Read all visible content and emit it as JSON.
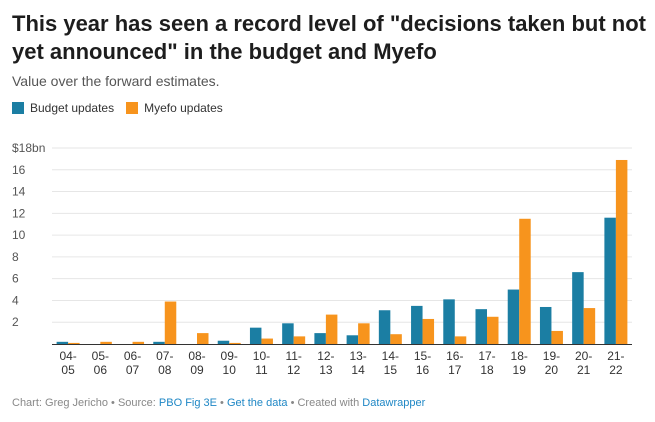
{
  "title": "This year has seen a record level of \"decisions taken but not yet announced\" in the budget and Myefo",
  "subtitle": "Value over the forward estimates.",
  "colors": {
    "budget": "#1b7ea3",
    "myefo": "#f7941d",
    "grid": "#e6e6e6",
    "axis": "#333333"
  },
  "footer": {
    "prefix": "Chart: Greg Jericho • Source: ",
    "source": "PBO Fig 3E",
    "sep1": " • ",
    "data_link": "Get the data",
    "sep2": " • Created with ",
    "tool": "Datawrapper"
  },
  "chart_data": {
    "type": "bar",
    "categories": [
      [
        "04-",
        "05"
      ],
      [
        "05-",
        "06"
      ],
      [
        "06-",
        "07"
      ],
      [
        "07-",
        "08"
      ],
      [
        "08-",
        "09"
      ],
      [
        "09-",
        "10"
      ],
      [
        "10-",
        "11"
      ],
      [
        "11-",
        "12"
      ],
      [
        "12-",
        "13"
      ],
      [
        "13-",
        "14"
      ],
      [
        "14-",
        "15"
      ],
      [
        "15-",
        "16"
      ],
      [
        "16-",
        "17"
      ],
      [
        "17-",
        "18"
      ],
      [
        "18-",
        "19"
      ],
      [
        "19-",
        "20"
      ],
      [
        "20-",
        "21"
      ],
      [
        "21-",
        "22"
      ]
    ],
    "series": [
      {
        "name": "Budget updates",
        "values": [
          0.2,
          0,
          0,
          0.2,
          0,
          0.3,
          1.5,
          1.9,
          1.0,
          0.8,
          3.1,
          3.5,
          4.1,
          3.2,
          5.0,
          3.4,
          6.6,
          11.6
        ]
      },
      {
        "name": "Myefo updates",
        "values": [
          0.1,
          0.2,
          0.2,
          3.9,
          1.0,
          0.1,
          0.5,
          0.7,
          2.7,
          1.9,
          0.9,
          2.3,
          0.7,
          2.5,
          11.5,
          1.2,
          3.3,
          16.9
        ]
      }
    ],
    "y_ticks": [
      "$18bn",
      "16",
      "14",
      "12",
      "10",
      "8",
      "6",
      "4",
      "2"
    ],
    "y_tick_values": [
      18,
      16,
      14,
      12,
      10,
      8,
      6,
      4,
      2
    ],
    "ylim": [
      0,
      18
    ],
    "grid": true,
    "legend_position": "top-left"
  }
}
